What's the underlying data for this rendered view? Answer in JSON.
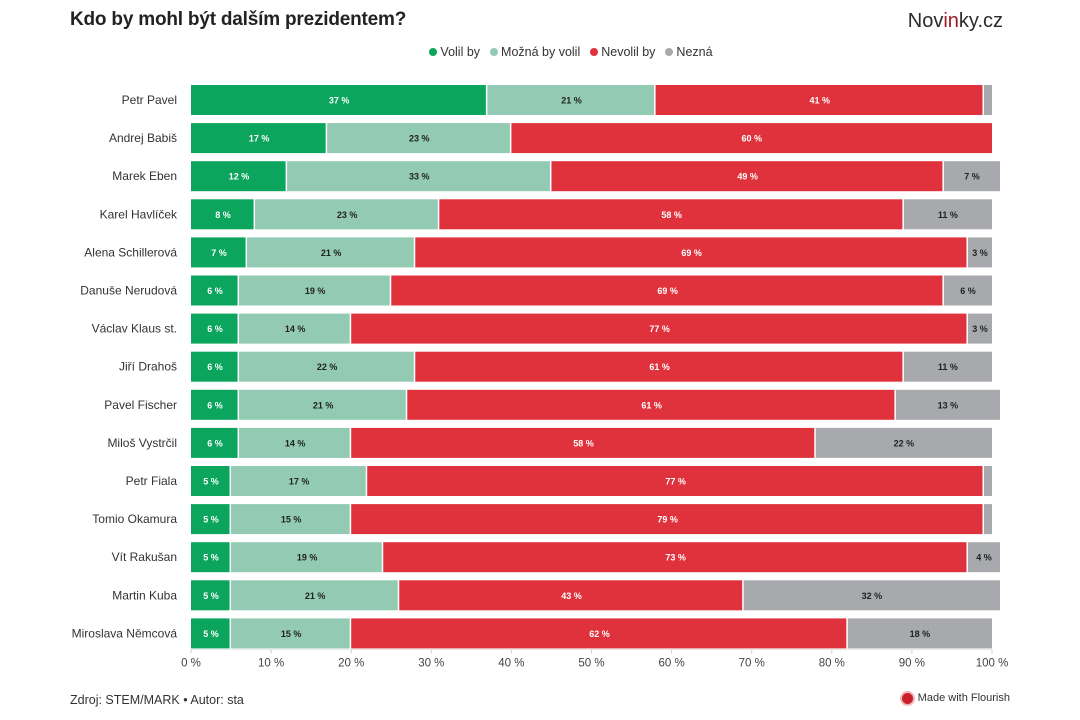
{
  "header": {
    "title": "Kdo by mohl být dalším prezidentem?",
    "brand_prefix": "Nov",
    "brand_accent": "in",
    "brand_suffix": "ky.cz",
    "brand_accent_color": "#9e1b25"
  },
  "footer": {
    "source": "Zdroj: STEM/MARK • Autor: sta",
    "made_with": "Made with Flourish"
  },
  "chart_data": {
    "type": "bar",
    "orientation": "horizontal",
    "stacked": true,
    "title": "Kdo by mohl být dalším prezidentem?",
    "xlabel": "",
    "ylabel": "",
    "xlim": [
      0,
      100
    ],
    "x_ticks": [
      "0 %",
      "10 %",
      "20 %",
      "30 %",
      "40 %",
      "50 %",
      "60 %",
      "70 %",
      "80 %",
      "90 %",
      "100 %"
    ],
    "legend_position": "top-center",
    "value_suffix": " %",
    "categories": [
      "Petr Pavel",
      "Andrej Babiš",
      "Marek Eben",
      "Karel Havlíček",
      "Alena Schillerová",
      "Danuše Nerudová",
      "Václav Klaus st.",
      "Jiří Drahoš",
      "Pavel Fischer",
      "Miloš Vystrčil",
      "Petr Fiala",
      "Tomio Okamura",
      "Vít Rakušan",
      "Martin Kuba",
      "Miroslava Němcová"
    ],
    "series": [
      {
        "name": "Volil by",
        "color": "#0ba55e",
        "label_color": "#ffffff",
        "values": [
          37,
          17,
          12,
          8,
          7,
          6,
          6,
          6,
          6,
          6,
          5,
          5,
          5,
          5,
          5
        ],
        "show_label": [
          true,
          true,
          true,
          true,
          true,
          true,
          true,
          true,
          true,
          true,
          true,
          true,
          true,
          true,
          true
        ]
      },
      {
        "name": "Možná by volil",
        "color": "#93cab3",
        "label_color": "#222222",
        "values": [
          21,
          23,
          33,
          23,
          21,
          19,
          14,
          22,
          21,
          14,
          17,
          15,
          19,
          21,
          15
        ],
        "show_label": [
          true,
          true,
          true,
          true,
          true,
          true,
          true,
          true,
          true,
          true,
          true,
          true,
          true,
          true,
          true
        ]
      },
      {
        "name": "Nevolil by",
        "color": "#e0323c",
        "label_color": "#ffffff",
        "values": [
          41,
          60,
          49,
          58,
          69,
          69,
          77,
          61,
          61,
          58,
          77,
          79,
          73,
          43,
          62
        ],
        "show_label": [
          true,
          true,
          true,
          true,
          true,
          true,
          true,
          true,
          true,
          true,
          true,
          true,
          true,
          true,
          true
        ]
      },
      {
        "name": "Nezná",
        "color": "#a7a9ac",
        "label_color": "#222222",
        "values": [
          1,
          0,
          7,
          11,
          3,
          6,
          3,
          11,
          13,
          22,
          1,
          1,
          4,
          32,
          18
        ],
        "show_label": [
          false,
          false,
          true,
          true,
          true,
          true,
          true,
          true,
          true,
          true,
          false,
          false,
          true,
          true,
          true
        ]
      }
    ]
  }
}
